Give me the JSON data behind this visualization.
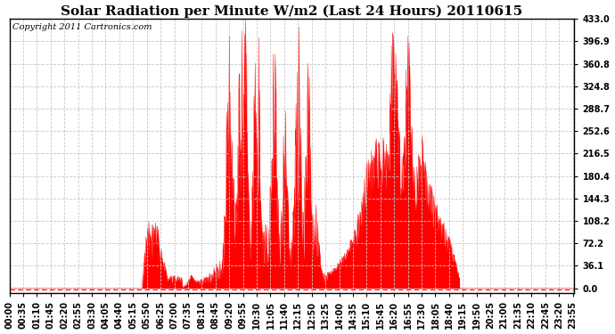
{
  "title": "Solar Radiation per Minute W/m2 (Last 24 Hours) 20110615",
  "copyright_text": "Copyright 2011 Cartronics.com",
  "y_ticks": [
    0.0,
    36.1,
    72.2,
    108.2,
    144.3,
    180.4,
    216.5,
    252.6,
    288.7,
    324.8,
    360.8,
    396.9,
    433.0
  ],
  "y_max": 433.0,
  "y_min": 0.0,
  "fill_color": "#ff0000",
  "line_color": "#ff0000",
  "dashed_line_color": "#ff0000",
  "grid_color": "#c8c8c8",
  "background_color": "#ffffff",
  "plot_bg_color": "#ffffff",
  "title_fontsize": 11,
  "copyright_fontsize": 7,
  "tick_fontsize": 7,
  "n_minutes": 1440,
  "x_tick_interval": 35,
  "x_tick_labels": [
    "00:00",
    "00:35",
    "01:10",
    "01:45",
    "02:20",
    "02:55",
    "03:30",
    "04:05",
    "04:40",
    "05:15",
    "05:50",
    "06:25",
    "07:00",
    "07:35",
    "08:10",
    "08:45",
    "09:20",
    "09:55",
    "10:30",
    "11:05",
    "11:40",
    "12:15",
    "12:50",
    "13:25",
    "14:00",
    "14:35",
    "15:10",
    "15:45",
    "16:20",
    "16:55",
    "17:30",
    "18:05",
    "18:40",
    "19:15",
    "19:50",
    "20:25",
    "21:00",
    "21:35",
    "22:10",
    "22:45",
    "23:20",
    "23:55"
  ]
}
